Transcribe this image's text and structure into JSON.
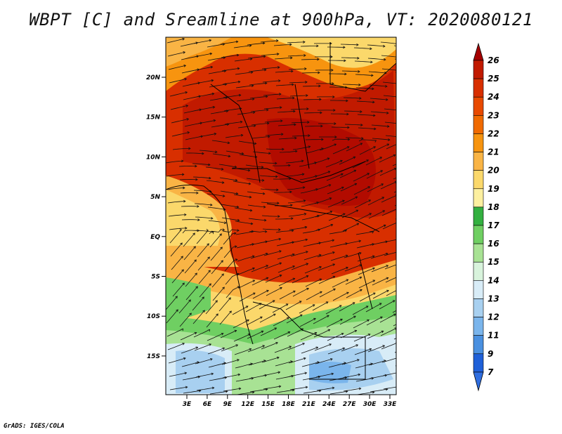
{
  "title": "WBPT [C] and Sreamline at 900hPa, VT: 2020080121",
  "footer": "GrADS: IGES/COLA",
  "map": {
    "lat_labels": [
      "20N",
      "15N",
      "10N",
      "5N",
      "EQ",
      "5S",
      "10S",
      "15S"
    ],
    "lon_labels": [
      "3E",
      "6E",
      "9E",
      "12E",
      "15E",
      "18E",
      "21E",
      "24E",
      "27E",
      "30E",
      "33E"
    ]
  },
  "colorbar": {
    "labels": [
      "26",
      "25",
      "24",
      "23",
      "22",
      "21",
      "20",
      "19",
      "18",
      "17",
      "16",
      "15",
      "14",
      "13",
      "12",
      "11",
      "9",
      "7"
    ],
    "colors": [
      "#a50000",
      "#c11a00",
      "#d82f00",
      "#e84a00",
      "#f06a00",
      "#f7940f",
      "#f9b445",
      "#fbd86b",
      "#fdf0a0",
      "#33b040",
      "#6fcf62",
      "#a8e294",
      "#d8f3dc",
      "#d8ecf7",
      "#a8d0f0",
      "#7ab5ec",
      "#4a90e0",
      "#1f60d8",
      "#2f6ee0"
    ]
  }
}
